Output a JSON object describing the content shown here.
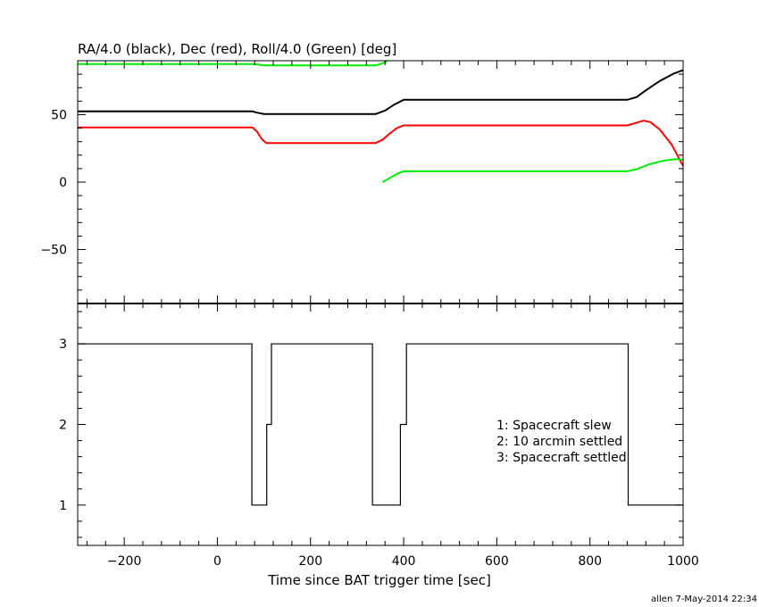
{
  "title": "RA/4.0 (black), Dec (red), Roll/4.0 (Green) [deg]",
  "xlabel": "Time since BAT trigger time [sec]",
  "footer": "allen  7-May-2014 22:34",
  "chart_data": [
    {
      "type": "line",
      "title": "RA/4.0 (black), Dec (red), Roll/4.0 (Green) [deg]",
      "xlim": [
        -300,
        1000
      ],
      "ylim": [
        -90,
        90
      ],
      "xticks": [
        -200,
        0,
        200,
        400,
        600,
        800,
        1000
      ],
      "yticks": [
        -50,
        0,
        50
      ],
      "series": [
        {
          "name": "RA/4.0",
          "color": "#000000",
          "points": [
            [
              -300,
              52.5
            ],
            [
              75,
              52.5
            ],
            [
              85,
              51.5
            ],
            [
              100,
              50.5
            ],
            [
              340,
              50.5
            ],
            [
              360,
              53
            ],
            [
              380,
              57.5
            ],
            [
              400,
              61
            ],
            [
              880,
              61
            ],
            [
              900,
              63
            ],
            [
              920,
              68
            ],
            [
              950,
              75
            ],
            [
              980,
              80.5
            ],
            [
              1000,
              83
            ]
          ]
        },
        {
          "name": "Dec",
          "color": "#ff0000",
          "points": [
            [
              -300,
              40.5
            ],
            [
              75,
              40.5
            ],
            [
              85,
              37.5
            ],
            [
              95,
              32
            ],
            [
              105,
              29
            ],
            [
              340,
              29
            ],
            [
              355,
              31.5
            ],
            [
              370,
              36
            ],
            [
              385,
              40
            ],
            [
              400,
              42
            ],
            [
              880,
              42
            ],
            [
              895,
              43.5
            ],
            [
              915,
              45.5
            ],
            [
              930,
              44.5
            ],
            [
              950,
              39
            ],
            [
              975,
              28
            ],
            [
              1000,
              12
            ]
          ]
        },
        {
          "name": "Roll/4.0",
          "color": "#00ee00",
          "points": [
            [
              -300,
              87.5
            ],
            [
              80,
              87.5
            ],
            [
              100,
              86.5
            ],
            [
              340,
              86.5
            ],
            [
              355,
              88
            ],
            [
              365,
              90
            ]
          ]
        },
        {
          "name": "Roll/4.0 (wrapped)",
          "color": "#00ee00",
          "points": [
            [
              355,
              0
            ],
            [
              370,
              3
            ],
            [
              385,
              6
            ],
            [
              400,
              8
            ],
            [
              880,
              8
            ],
            [
              900,
              9.5
            ],
            [
              930,
              13.5
            ],
            [
              960,
              16
            ],
            [
              985,
              17
            ],
            [
              1000,
              16.5
            ]
          ]
        }
      ]
    },
    {
      "type": "line",
      "step": true,
      "xlim": [
        -300,
        1000
      ],
      "ylim": [
        0.5,
        3.5
      ],
      "xticks": [
        -200,
        0,
        200,
        400,
        600,
        800,
        1000
      ],
      "yticks": [
        1,
        2,
        3
      ],
      "legend": [
        "1: Spacecraft slew",
        "2: 10 arcmin settled",
        "3: Spacecraft settled"
      ],
      "series": [
        {
          "color": "#000000",
          "points": [
            [
              -300,
              3
            ],
            [
              74,
              3
            ],
            [
              74,
              1
            ],
            [
              106,
              1
            ],
            [
              106,
              2
            ],
            [
              116,
              2
            ],
            [
              116,
              3
            ],
            [
              333,
              3
            ],
            [
              333,
              1
            ],
            [
              393,
              1
            ],
            [
              393,
              2
            ],
            [
              406,
              2
            ],
            [
              406,
              3
            ],
            [
              882,
              3
            ],
            [
              882,
              1
            ],
            [
              1000,
              1
            ]
          ]
        }
      ]
    }
  ]
}
